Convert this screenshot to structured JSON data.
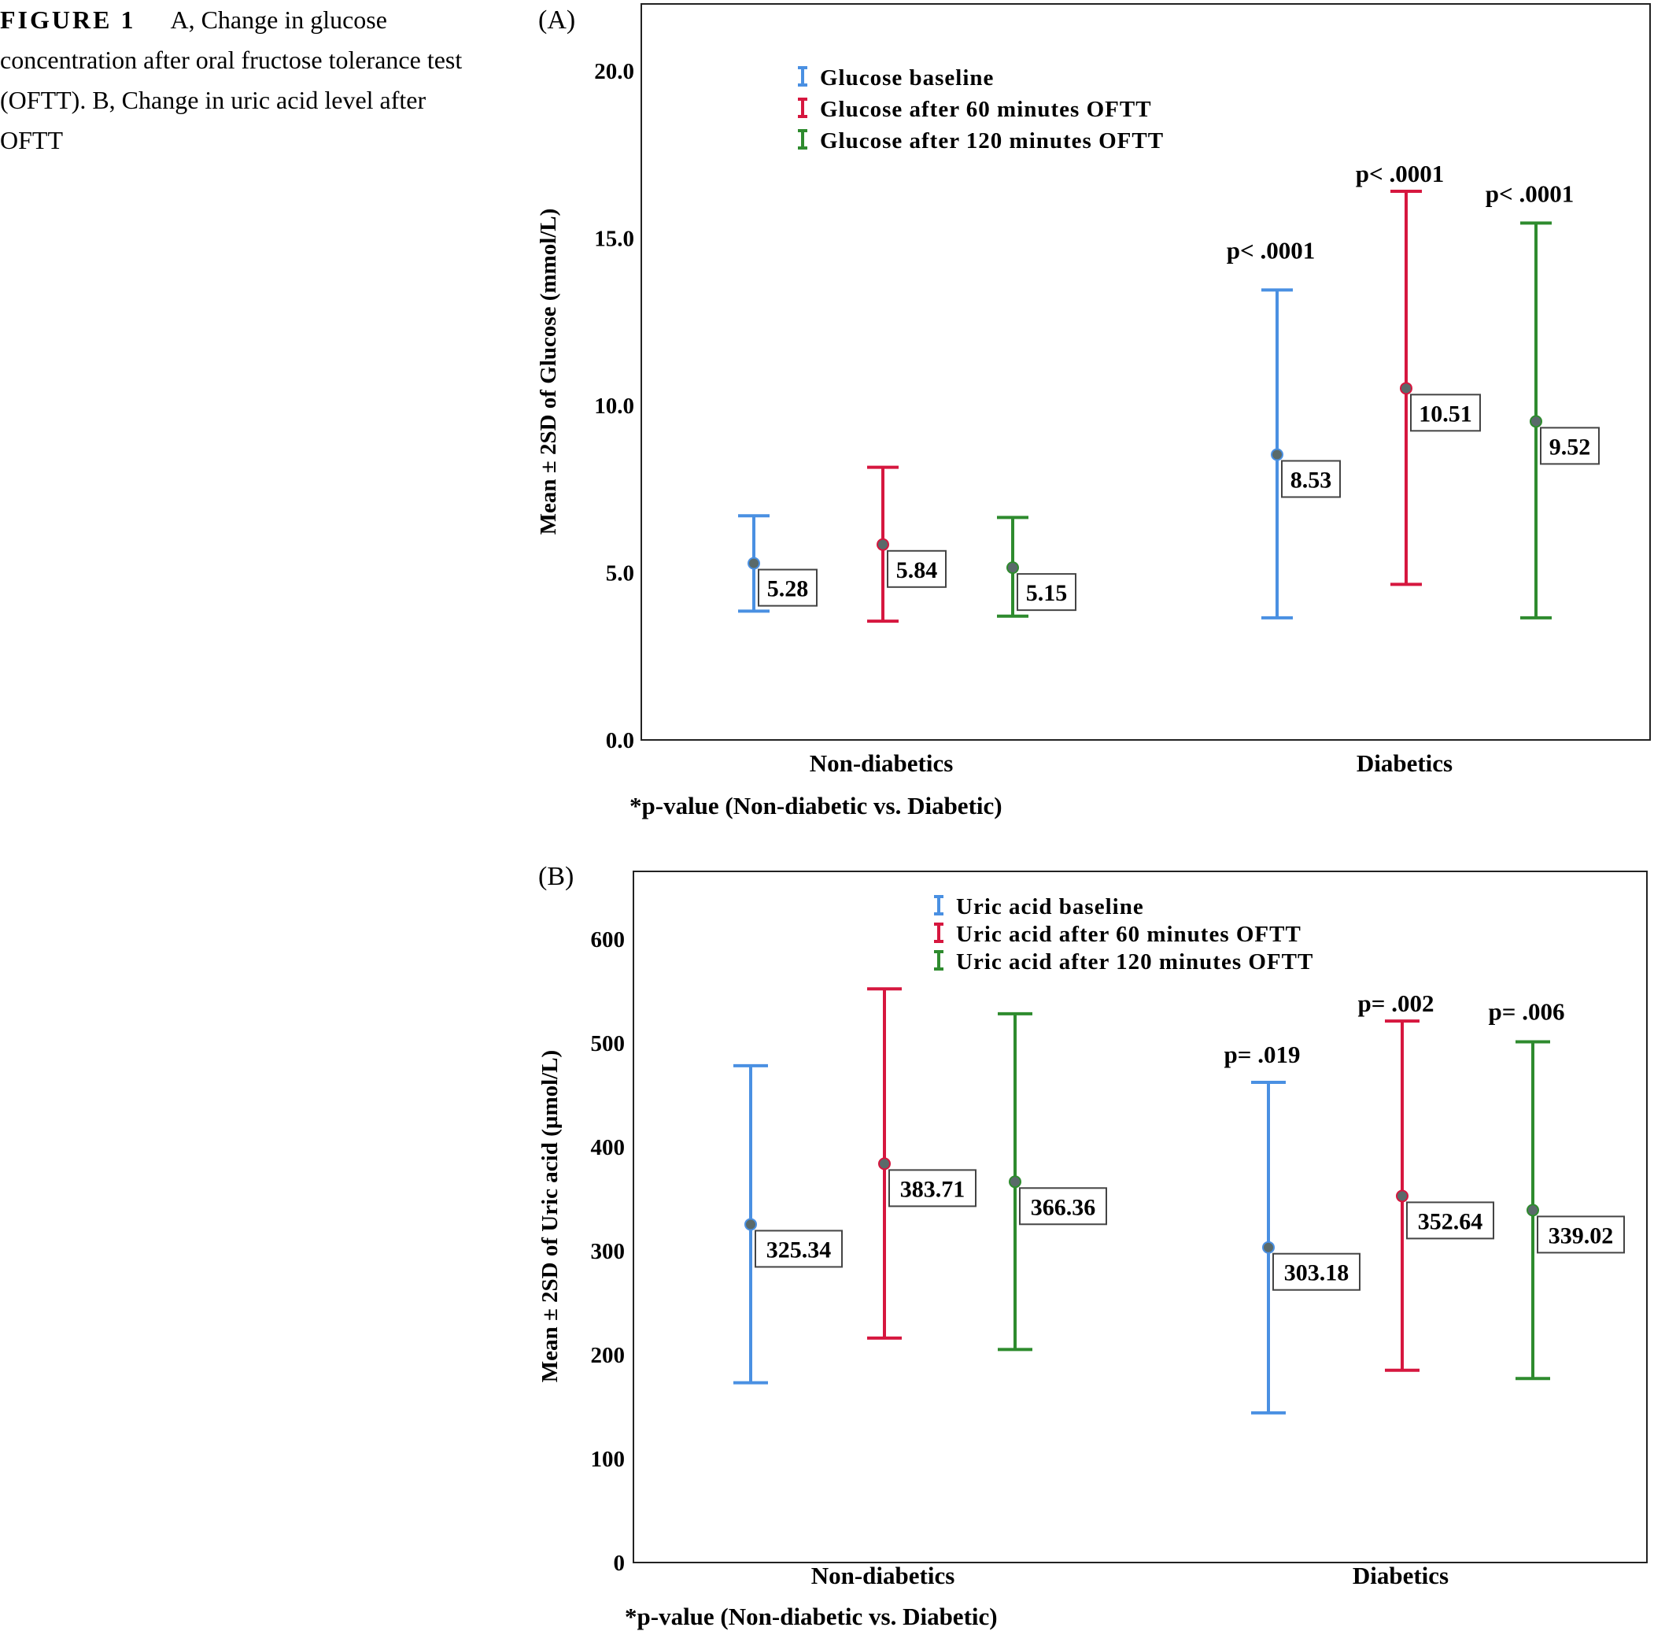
{
  "caption": {
    "label": "FIGURE 1",
    "text": "A, Change in glucose concentration after oral fructose tolerance test (OFTT). B, Change in uric acid level after OFTT"
  },
  "colors": {
    "baseline": "#4a90e2",
    "min60": "#d6173f",
    "min120": "#2e8b2e",
    "point": "#5a6a6a"
  },
  "chart_data": [
    {
      "type": "errorbar",
      "panel_label": "(A)",
      "ylabel": "Mean ± 2SD of Glucose (mmol/L)",
      "ylim": [
        0,
        22
      ],
      "yticks": [
        0,
        5,
        10,
        15,
        20
      ],
      "ytick_labels": [
        "0.0",
        "5.0",
        "10.0",
        "15.0",
        "20.0"
      ],
      "categories": [
        "Non-diabetics",
        "Diabetics"
      ],
      "footnote": "*p-value (Non-diabetic vs. Diabetic)",
      "series": [
        {
          "name": "Glucose baseline",
          "color_key": "baseline",
          "means": [
            5.28,
            8.53
          ],
          "mean_labels": [
            "5.28",
            "8.53"
          ],
          "lower": [
            3.85,
            3.65
          ],
          "upper": [
            6.7,
            13.45
          ]
        },
        {
          "name": "Glucose after 60 minutes OFTT",
          "color_key": "min60",
          "means": [
            5.84,
            10.51
          ],
          "mean_labels": [
            "5.84",
            "10.51"
          ],
          "lower": [
            3.55,
            4.65
          ],
          "upper": [
            8.15,
            16.4
          ]
        },
        {
          "name": "Glucose after 120 minutes OFTT",
          "color_key": "min120",
          "means": [
            5.15,
            9.52
          ],
          "mean_labels": [
            "5.15",
            "9.52"
          ],
          "lower": [
            3.7,
            3.65
          ],
          "upper": [
            6.65,
            15.45
          ]
        }
      ],
      "pvalues": [
        "p< .0001",
        "p< .0001",
        "p< .0001"
      ]
    },
    {
      "type": "errorbar",
      "panel_label": "(B)",
      "ylabel": "Mean ± 2SD of Uric acid (µmol/L)",
      "ylim": [
        0,
        665
      ],
      "yticks": [
        0,
        100,
        200,
        300,
        400,
        500,
        600
      ],
      "ytick_labels": [
        "0",
        "100",
        "200",
        "300",
        "400",
        "500",
        "600"
      ],
      "categories": [
        "Non-diabetics",
        "Diabetics"
      ],
      "footnote": "*p-value (Non-diabetic vs. Diabetic)",
      "series": [
        {
          "name": "Uric acid baseline",
          "color_key": "baseline",
          "means": [
            325.34,
            303.18
          ],
          "mean_labels": [
            "325.34",
            "303.18"
          ],
          "lower": [
            173,
            144
          ],
          "upper": [
            478,
            462
          ]
        },
        {
          "name": "Uric acid after 60 minutes OFTT",
          "color_key": "min60",
          "means": [
            383.71,
            352.64
          ],
          "mean_labels": [
            "383.71",
            "352.64"
          ],
          "lower": [
            216,
            185
          ],
          "upper": [
            552,
            521
          ]
        },
        {
          "name": "Uric acid after 120 minutes OFTT",
          "color_key": "min120",
          "means": [
            366.36,
            339.02
          ],
          "mean_labels": [
            "366.36",
            "339.02"
          ],
          "lower": [
            205,
            177
          ],
          "upper": [
            528,
            501
          ]
        }
      ],
      "pvalues": [
        "p= .019",
        "p= .002",
        "p= .006"
      ]
    }
  ]
}
